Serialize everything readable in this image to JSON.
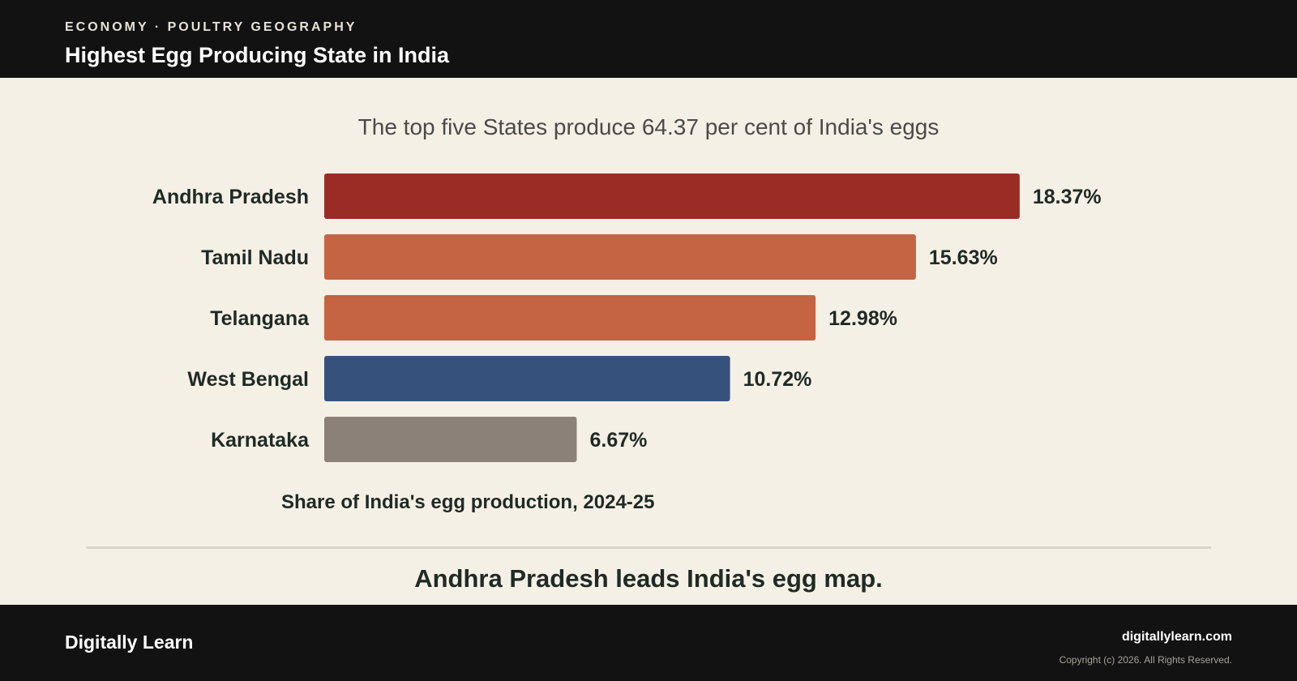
{
  "header": {
    "kicker": "ECONOMY · POULTRY GEOGRAPHY",
    "title": "Highest Egg Producing State in India"
  },
  "chart_data": {
    "type": "bar",
    "orientation": "horizontal",
    "title": "The top five States produce 64.37 per cent of India's eggs",
    "caption": "Share of India's egg production, 2024-25",
    "categories": [
      "Andhra Pradesh",
      "Tamil Nadu",
      "Telangana",
      "West Bengal",
      "Karnataka"
    ],
    "values": [
      18.37,
      15.63,
      12.98,
      10.72,
      6.67
    ],
    "value_labels": [
      "18.37%",
      "15.63%",
      "12.98%",
      "10.72%",
      "6.67%"
    ],
    "bar_colors": [
      "#9b2b25",
      "#c46443",
      "#c46443",
      "#36527c",
      "#8c8178"
    ],
    "grid": false,
    "legend": "none"
  },
  "takeaway": "Andhra Pradesh leads India's egg map.",
  "footer": {
    "brand": "Digitally Learn",
    "site": "digitallylearn.com",
    "copyright": "Copyright (c) 2026. All Rights Reserved."
  }
}
